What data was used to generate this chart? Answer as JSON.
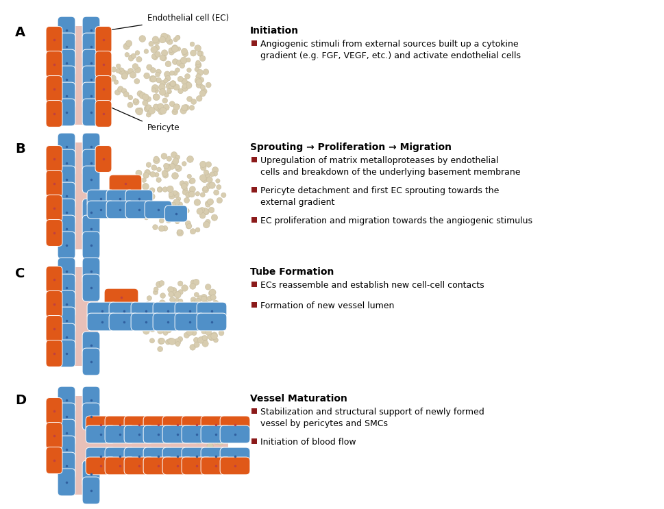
{
  "bg_color": "#ffffff",
  "blue_color": "#5090c8",
  "orange_color": "#e05818",
  "pink_color": "#e8c0b8",
  "dot_color": "#d8cdb0",
  "dot_edge": "#c8bda0",
  "panel_labels": [
    "A",
    "B",
    "C",
    "D"
  ],
  "section_titles": [
    "Initiation",
    "Sprouting → Proliferation → Migration",
    "Tube Formation",
    "Vessel Maturation"
  ],
  "bullets": [
    [
      "Angiogenic stimuli from external sources built up a cytokine\ngradient (e.g. FGF, VEGF, etc.) and activate endothelial cells"
    ],
    [
      "Upregulation of matrix metalloproteases by endothelial\ncells and breakdown of the underlying basement membrane",
      "Pericyte detachment and first EC sprouting towards the\nexternal gradient",
      "EC proliferation and migration towards the angiogenic stimulus"
    ],
    [
      "ECs reassemble and establish new cell-cell contacts",
      "Formation of new vessel lumen"
    ],
    [
      "Stabilization and structural support of newly formed\nvessel by pericytes and SMCs",
      "Initiation of blood flow"
    ]
  ],
  "annotation_ec": "Endothelial cell (EC)",
  "annotation_pericyte": "Pericyte",
  "bullet_color": "#8b1a1a",
  "title_fontsize": 10,
  "bullet_fontsize": 9,
  "label_fontsize": 14
}
